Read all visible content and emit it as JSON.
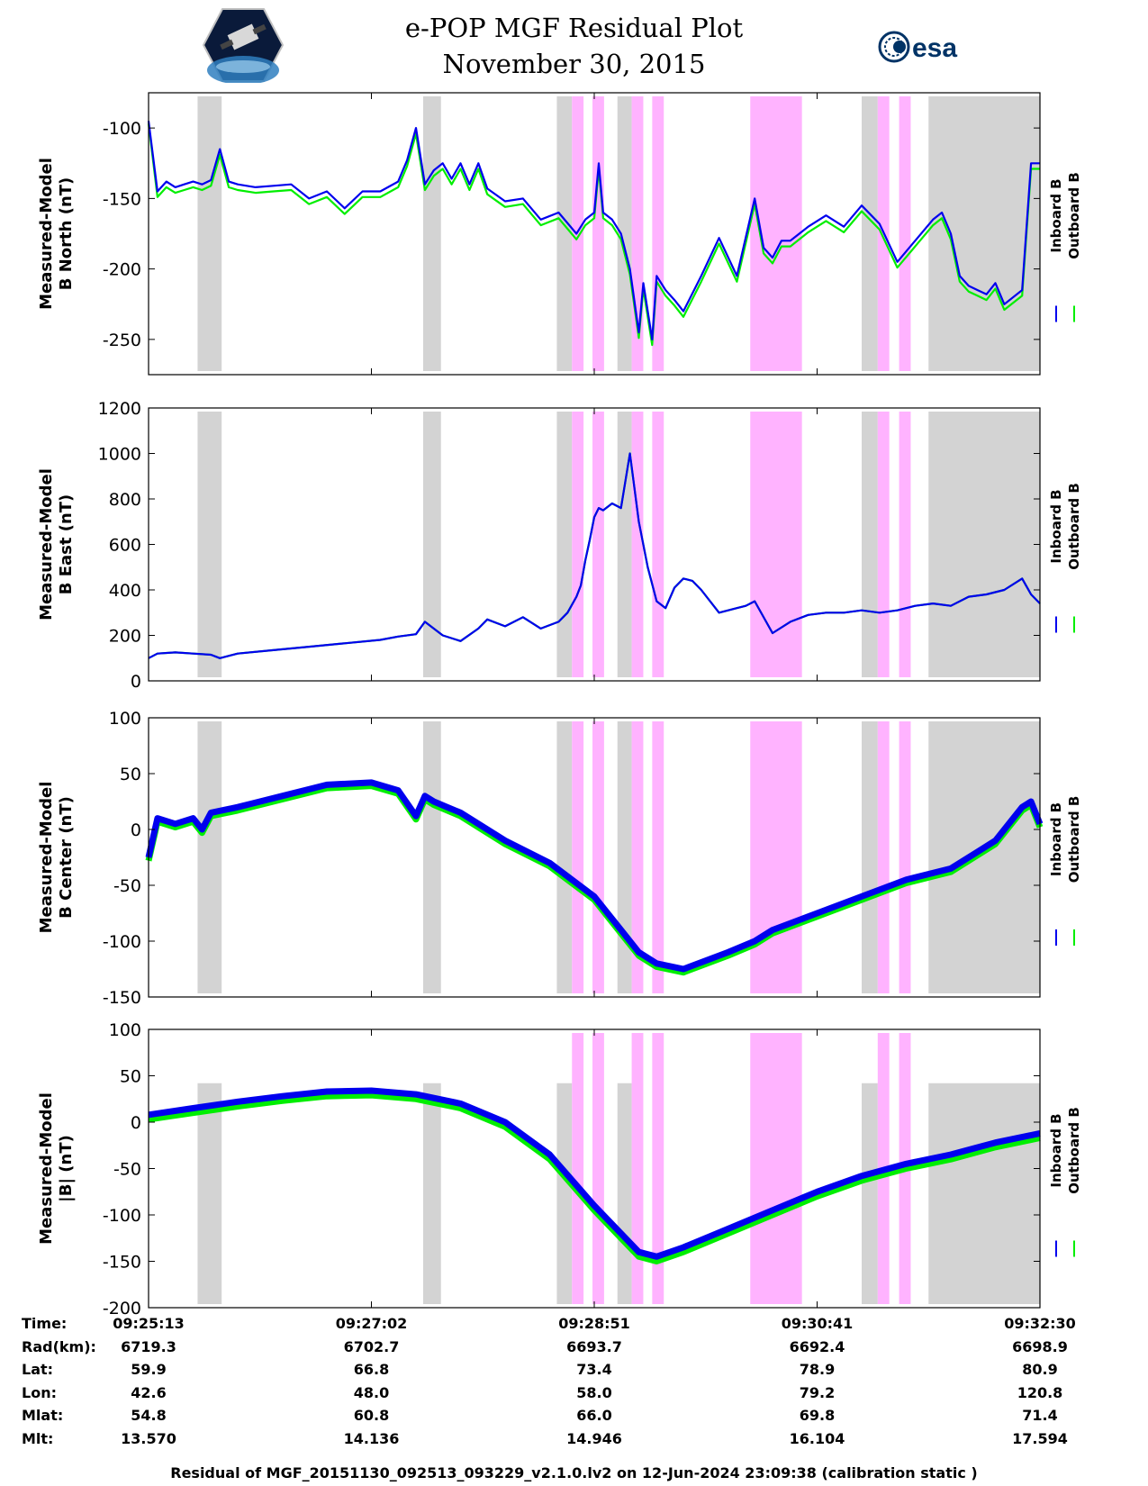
{
  "header": {
    "title": "e-POP MGF Residual Plot",
    "date": "November 30, 2015",
    "logo_left_icon": "cassiope-mission-patch-icon",
    "logo_right_icon": "esa-logo-icon",
    "logo_right_text": "esa"
  },
  "colors": {
    "inboard": "#0000ee",
    "outboard": "#00ee00",
    "gray_band": "#d3d3d3",
    "pink_band": "#ffb3ff",
    "grid": "#cfcfcf"
  },
  "legend": {
    "inboard_label": "Inboard B",
    "outboard_label": "Outboard B"
  },
  "chart_data": [
    {
      "type": "line",
      "ylabel_line1": "Measured-Model",
      "ylabel_line2": "B North (nT)",
      "ylim": [
        -275,
        -75
      ],
      "yticks": [
        -100,
        -150,
        -200,
        -250
      ],
      "ytick_labels": [
        "-100",
        "-150",
        "-200",
        "-250"
      ],
      "xlim": [
        0,
        100
      ],
      "x": [
        0,
        1,
        2,
        3,
        4,
        5,
        6,
        7,
        8,
        9,
        10,
        12,
        14,
        16,
        18,
        20,
        22,
        24,
        26,
        28,
        29,
        30,
        31,
        32,
        33,
        34,
        35,
        36,
        37,
        38,
        40,
        42,
        44,
        46,
        48,
        49,
        50,
        50.5,
        51,
        52,
        53,
        54,
        55,
        55.5,
        56,
        56.5,
        57,
        58,
        59,
        60,
        62,
        64,
        66,
        68,
        69,
        70,
        71,
        72,
        74,
        76,
        78,
        80,
        82,
        84,
        86,
        88,
        89,
        90,
        91,
        92,
        93,
        94,
        95,
        96,
        98,
        99,
        100
      ],
      "series": [
        {
          "name": "Inboard B",
          "values": [
            -95,
            -145,
            -138,
            -142,
            -140,
            -138,
            -140,
            -137,
            -115,
            -138,
            -140,
            -142,
            -141,
            -140,
            -150,
            -145,
            -157,
            -145,
            -145,
            -138,
            -123,
            -100,
            -140,
            -130,
            -125,
            -136,
            -125,
            -140,
            -125,
            -143,
            -152,
            -150,
            -165,
            -160,
            -175,
            -165,
            -160,
            -125,
            -160,
            -165,
            -175,
            -200,
            -245,
            -210,
            -230,
            -250,
            -205,
            -215,
            -222,
            -230,
            -205,
            -178,
            -205,
            -150,
            -185,
            -192,
            -180,
            -180,
            -170,
            -162,
            -170,
            -155,
            -168,
            -195,
            -180,
            -165,
            -160,
            -175,
            -205,
            -212,
            -215,
            -218,
            -210,
            -225,
            -215,
            -125,
            -125
          ]
        },
        {
          "name": "Outboard B",
          "values": [
            -97,
            -149,
            -142,
            -146,
            -144,
            -142,
            -144,
            -141,
            -119,
            -142,
            -144,
            -146,
            -145,
            -144,
            -154,
            -149,
            -161,
            -149,
            -149,
            -142,
            -127,
            -104,
            -144,
            -134,
            -129,
            -140,
            -129,
            -144,
            -129,
            -147,
            -156,
            -154,
            -169,
            -164,
            -179,
            -169,
            -164,
            -129,
            -164,
            -169,
            -179,
            -204,
            -249,
            -214,
            -234,
            -254,
            -209,
            -219,
            -226,
            -234,
            -209,
            -182,
            -209,
            -154,
            -189,
            -196,
            -184,
            -184,
            -174,
            -166,
            -174,
            -159,
            -172,
            -199,
            -184,
            -169,
            -164,
            -179,
            -209,
            -216,
            -219,
            -222,
            -214,
            -229,
            -219,
            -129,
            -129
          ]
        }
      ]
    },
    {
      "type": "line",
      "ylabel_line1": "Measured-Model",
      "ylabel_line2": "B East (nT)",
      "ylim": [
        0,
        1200
      ],
      "yticks": [
        0,
        200,
        400,
        600,
        800,
        1000,
        1200
      ],
      "ytick_labels": [
        "0",
        "200",
        "400",
        "600",
        "800",
        "1000",
        "1200"
      ],
      "xlim": [
        0,
        100
      ],
      "x": [
        0,
        1,
        3,
        5,
        7,
        8,
        10,
        14,
        18,
        22,
        26,
        28,
        30,
        31,
        33,
        35,
        37,
        38,
        40,
        42,
        44,
        46,
        47,
        48,
        48.5,
        49,
        49.5,
        50,
        50.5,
        51,
        52,
        53,
        54,
        55,
        56,
        57,
        58,
        59,
        60,
        61,
        62,
        64,
        66,
        67,
        68,
        70,
        72,
        74,
        76,
        78,
        80,
        82,
        84,
        86,
        88,
        90,
        92,
        94,
        96,
        98,
        99,
        100
      ],
      "series": [
        {
          "name": "Inboard B",
          "values": [
            100,
            120,
            125,
            120,
            115,
            100,
            120,
            135,
            150,
            165,
            180,
            195,
            205,
            260,
            200,
            175,
            230,
            270,
            240,
            280,
            230,
            260,
            300,
            370,
            420,
            530,
            620,
            720,
            760,
            750,
            780,
            760,
            1000,
            700,
            500,
            350,
            320,
            410,
            450,
            440,
            400,
            300,
            320,
            330,
            350,
            210,
            260,
            290,
            300,
            300,
            310,
            300,
            310,
            330,
            340,
            330,
            370,
            380,
            400,
            450,
            380,
            340
          ]
        },
        {
          "name": "Outboard B",
          "values": [
            100,
            120,
            125,
            120,
            115,
            100,
            120,
            135,
            150,
            165,
            180,
            195,
            205,
            260,
            200,
            175,
            230,
            270,
            240,
            280,
            230,
            260,
            300,
            370,
            420,
            530,
            620,
            720,
            760,
            750,
            780,
            760,
            1000,
            700,
            500,
            350,
            320,
            410,
            450,
            440,
            400,
            300,
            320,
            330,
            350,
            210,
            260,
            290,
            300,
            300,
            310,
            300,
            310,
            330,
            340,
            330,
            370,
            380,
            400,
            450,
            380,
            340
          ]
        }
      ]
    },
    {
      "type": "line",
      "ylabel_line1": "Measured-Model",
      "ylabel_line2": "B Center (nT)",
      "ylim": [
        -150,
        100
      ],
      "yticks": [
        -150,
        -100,
        -50,
        0,
        50,
        100
      ],
      "ytick_labels": [
        "-150",
        "-100",
        "-50",
        "0",
        "50",
        "100"
      ],
      "xlim": [
        0,
        100
      ],
      "x": [
        0,
        1,
        3,
        5,
        6,
        7,
        10,
        15,
        20,
        25,
        28,
        30,
        31,
        32,
        35,
        40,
        45,
        50,
        53,
        55,
        57,
        60,
        65,
        68,
        70,
        75,
        80,
        85,
        90,
        93,
        95,
        98,
        99,
        100
      ],
      "series": [
        {
          "name": "Inboard B",
          "values": [
            -25,
            10,
            5,
            10,
            0,
            15,
            20,
            30,
            40,
            42,
            35,
            12,
            30,
            25,
            15,
            -10,
            -30,
            -60,
            -90,
            -110,
            -120,
            -125,
            -110,
            -100,
            -90,
            -75,
            -60,
            -45,
            -35,
            -20,
            -10,
            20,
            25,
            5
          ]
        },
        {
          "name": "Outboard B",
          "values": [
            -28,
            7,
            2,
            7,
            -3,
            12,
            17,
            27,
            37,
            39,
            32,
            9,
            27,
            22,
            12,
            -13,
            -33,
            -63,
            -93,
            -113,
            -123,
            -128,
            -113,
            -103,
            -93,
            -78,
            -63,
            -48,
            -38,
            -23,
            -13,
            17,
            22,
            2
          ]
        }
      ]
    },
    {
      "type": "line",
      "ylabel_line1": "Measured-Model",
      "ylabel_line2": "|B| (nT)",
      "ylim": [
        -200,
        100
      ],
      "yticks": [
        -200,
        -150,
        -100,
        -50,
        0,
        50,
        100
      ],
      "ytick_labels": [
        "-200",
        "-150",
        "-100",
        "-50",
        "0",
        "50",
        "100"
      ],
      "xlim": [
        0,
        100
      ],
      "x": [
        0,
        5,
        10,
        15,
        20,
        25,
        30,
        35,
        40,
        45,
        50,
        55,
        57,
        60,
        65,
        70,
        75,
        80,
        85,
        90,
        95,
        100
      ],
      "series": [
        {
          "name": "Inboard B",
          "values": [
            8,
            15,
            22,
            28,
            33,
            34,
            30,
            20,
            0,
            -35,
            -90,
            -140,
            -145,
            -135,
            -115,
            -95,
            -75,
            -58,
            -45,
            -35,
            -22,
            -12
          ]
        },
        {
          "name": "Outboard B",
          "values": [
            3,
            10,
            17,
            23,
            28,
            29,
            25,
            15,
            -5,
            -40,
            -95,
            -145,
            -150,
            -140,
            -120,
            -100,
            -80,
            -63,
            -50,
            -40,
            -27,
            -17
          ]
        }
      ]
    }
  ],
  "gray_bands": [
    [
      5.5,
      8.2
    ],
    [
      30.8,
      32.8
    ],
    [
      45.8,
      47.5
    ],
    [
      52.6,
      54.2
    ],
    [
      80.0,
      81.8
    ],
    [
      87.5,
      100
    ]
  ],
  "pink_bands": [
    [
      47.5,
      48.8
    ],
    [
      49.8,
      51.1
    ],
    [
      54.2,
      55.5
    ],
    [
      56.5,
      57.8
    ],
    [
      67.5,
      73.3
    ],
    [
      81.8,
      83.1
    ],
    [
      84.2,
      85.5
    ]
  ],
  "x_axis": {
    "ticks": [
      0,
      25,
      50,
      75,
      100
    ],
    "row_labels": [
      "Time:",
      "Rad(km):",
      "Lat:",
      "Lon:",
      "Mlat:",
      "Mlt:"
    ],
    "columns": [
      [
        "09:25:13",
        "6719.3",
        "59.9",
        "42.6",
        "54.8",
        "13.570"
      ],
      [
        "09:27:02",
        "6702.7",
        "66.8",
        "48.0",
        "60.8",
        "14.136"
      ],
      [
        "09:28:51",
        "6693.7",
        "73.4",
        "58.0",
        "66.0",
        "14.946"
      ],
      [
        "09:30:41",
        "6692.4",
        "78.9",
        "79.2",
        "69.8",
        "16.104"
      ],
      [
        "09:32:30",
        "6698.9",
        "80.9",
        "120.8",
        "71.4",
        "17.594"
      ]
    ]
  },
  "footer": "Residual of MGF_20151130_092513_093229_v2.1.0.lv2 on 12-Jun-2024 23:09:38 (calibration static )"
}
